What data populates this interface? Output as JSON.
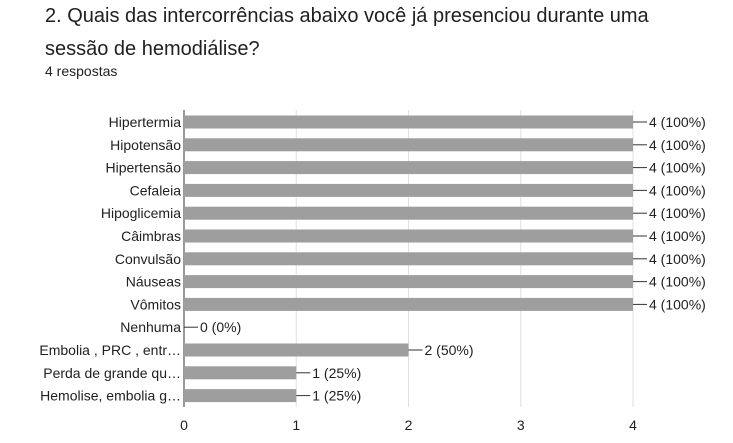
{
  "question": {
    "title": "2. Quais das intercorrências abaixo você já presenciou durante uma sessão de hemodiálise?",
    "response_count": "4 respostas"
  },
  "colors": {
    "bar": "#9e9e9e",
    "grid": "#e0e0e0",
    "axis": "#333333",
    "text": "#202124"
  },
  "chart_data": {
    "type": "bar",
    "orientation": "horizontal",
    "title": "",
    "xlabel": "",
    "ylabel": "",
    "xlim": [
      0,
      4
    ],
    "ticks": [
      "0",
      "1",
      "2",
      "3",
      "4"
    ],
    "grid": true,
    "categories": [
      "Hipertermia",
      "Hipotensão",
      "Hipertensão",
      "Cefaleia",
      "Hipoglicemia",
      "Câimbras",
      "Convulsão",
      "Náuseas",
      "Vômitos",
      "Nenhuma",
      "Embolia , PRC , entr…",
      "Perda de grande qu…",
      "Hemolise, embolia g…"
    ],
    "values": [
      4,
      4,
      4,
      4,
      4,
      4,
      4,
      4,
      4,
      0,
      2,
      1,
      1
    ],
    "value_labels": [
      "4 (100%)",
      "4 (100%)",
      "4 (100%)",
      "4 (100%)",
      "4 (100%)",
      "4 (100%)",
      "4 (100%)",
      "4 (100%)",
      "4 (100%)",
      "0 (0%)",
      "2 (50%)",
      "1 (25%)",
      "1 (25%)"
    ]
  }
}
